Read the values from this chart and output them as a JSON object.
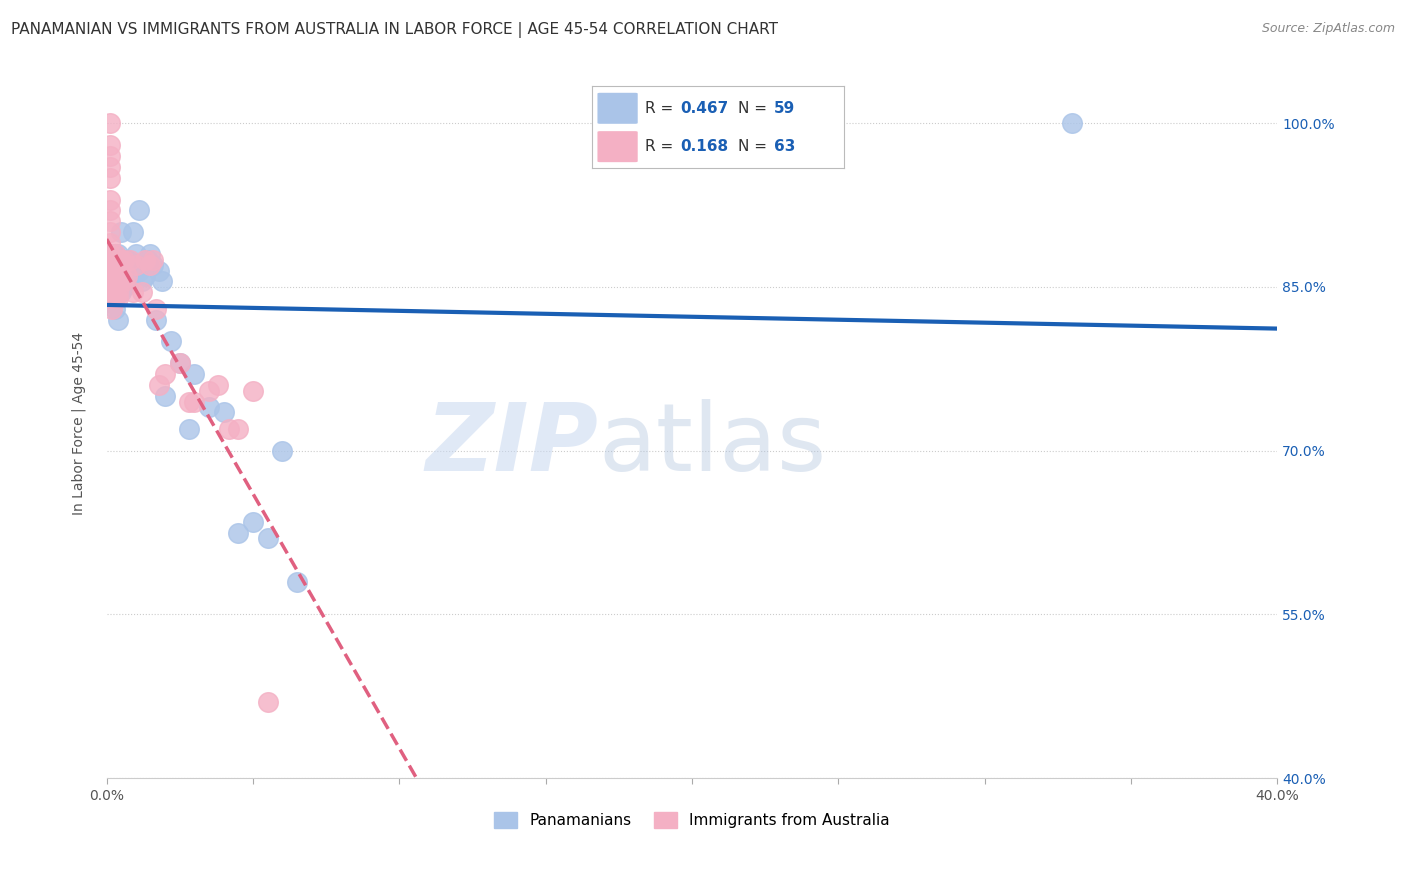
{
  "title": "PANAMANIAN VS IMMIGRANTS FROM AUSTRALIA IN LABOR FORCE | AGE 45-54 CORRELATION CHART",
  "source": "Source: ZipAtlas.com",
  "ylabel": "In Labor Force | Age 45-54",
  "xlim": [
    0.0,
    0.4
  ],
  "ylim": [
    0.4,
    1.05
  ],
  "ytick_positions": [
    0.4,
    0.55,
    0.7,
    0.85,
    1.0
  ],
  "yticklabels": [
    "40.0%",
    "55.0%",
    "70.0%",
    "85.0%",
    "100.0%"
  ],
  "xtick_positions": [
    0.0,
    0.05,
    0.1,
    0.15,
    0.2,
    0.25,
    0.3,
    0.35,
    0.4
  ],
  "xticklabels": [
    "0.0%",
    "",
    "",
    "",
    "",
    "",
    "",
    "",
    "40.0%"
  ],
  "blue_R": 0.467,
  "blue_N": 59,
  "pink_R": 0.168,
  "pink_N": 63,
  "blue_color": "#aac4e8",
  "pink_color": "#f4b0c4",
  "blue_line_color": "#1a5fb4",
  "pink_line_color": "#e06080",
  "blue_scatter": [
    [
      0.001,
      0.845
    ],
    [
      0.001,
      0.86
    ],
    [
      0.001,
      0.88
    ],
    [
      0.002,
      0.84
    ],
    [
      0.002,
      0.875
    ],
    [
      0.002,
      0.855
    ],
    [
      0.002,
      0.87
    ],
    [
      0.002,
      0.84
    ],
    [
      0.002,
      0.835
    ],
    [
      0.003,
      0.86
    ],
    [
      0.003,
      0.845
    ],
    [
      0.003,
      0.83
    ],
    [
      0.003,
      0.85
    ],
    [
      0.003,
      0.88
    ],
    [
      0.003,
      0.855
    ],
    [
      0.003,
      0.875
    ],
    [
      0.003,
      0.84
    ],
    [
      0.004,
      0.86
    ],
    [
      0.004,
      0.82
    ],
    [
      0.004,
      0.875
    ],
    [
      0.004,
      0.855
    ],
    [
      0.004,
      0.88
    ],
    [
      0.005,
      0.86
    ],
    [
      0.005,
      0.845
    ],
    [
      0.005,
      0.87
    ],
    [
      0.005,
      0.9
    ],
    [
      0.005,
      0.855
    ],
    [
      0.006,
      0.875
    ],
    [
      0.006,
      0.85
    ],
    [
      0.007,
      0.865
    ],
    [
      0.007,
      0.875
    ],
    [
      0.008,
      0.87
    ],
    [
      0.008,
      0.855
    ],
    [
      0.009,
      0.9
    ],
    [
      0.01,
      0.87
    ],
    [
      0.01,
      0.88
    ],
    [
      0.011,
      0.92
    ],
    [
      0.011,
      0.865
    ],
    [
      0.012,
      0.855
    ],
    [
      0.013,
      0.86
    ],
    [
      0.014,
      0.875
    ],
    [
      0.015,
      0.88
    ],
    [
      0.016,
      0.87
    ],
    [
      0.017,
      0.82
    ],
    [
      0.018,
      0.865
    ],
    [
      0.019,
      0.855
    ],
    [
      0.02,
      0.75
    ],
    [
      0.022,
      0.8
    ],
    [
      0.025,
      0.78
    ],
    [
      0.028,
      0.72
    ],
    [
      0.03,
      0.77
    ],
    [
      0.035,
      0.74
    ],
    [
      0.04,
      0.735
    ],
    [
      0.045,
      0.625
    ],
    [
      0.05,
      0.635
    ],
    [
      0.055,
      0.62
    ],
    [
      0.06,
      0.7
    ],
    [
      0.065,
      0.58
    ],
    [
      0.33,
      1.0
    ]
  ],
  "pink_scatter": [
    [
      0.001,
      1.0
    ],
    [
      0.001,
      0.98
    ],
    [
      0.001,
      0.97
    ],
    [
      0.001,
      0.96
    ],
    [
      0.001,
      0.95
    ],
    [
      0.001,
      0.93
    ],
    [
      0.001,
      0.92
    ],
    [
      0.001,
      0.91
    ],
    [
      0.001,
      0.9
    ],
    [
      0.001,
      0.89
    ],
    [
      0.001,
      0.88
    ],
    [
      0.001,
      0.87
    ],
    [
      0.001,
      0.86
    ],
    [
      0.001,
      0.855
    ],
    [
      0.002,
      0.875
    ],
    [
      0.002,
      0.86
    ],
    [
      0.002,
      0.855
    ],
    [
      0.002,
      0.845
    ],
    [
      0.002,
      0.84
    ],
    [
      0.002,
      0.83
    ],
    [
      0.002,
      0.875
    ],
    [
      0.002,
      0.86
    ],
    [
      0.002,
      0.855
    ],
    [
      0.002,
      0.845
    ],
    [
      0.003,
      0.88
    ],
    [
      0.003,
      0.875
    ],
    [
      0.003,
      0.86
    ],
    [
      0.003,
      0.845
    ],
    [
      0.003,
      0.875
    ],
    [
      0.003,
      0.85
    ],
    [
      0.003,
      0.84
    ],
    [
      0.003,
      0.875
    ],
    [
      0.003,
      0.86
    ],
    [
      0.004,
      0.845
    ],
    [
      0.004,
      0.84
    ],
    [
      0.004,
      0.87
    ],
    [
      0.004,
      0.855
    ],
    [
      0.004,
      0.875
    ],
    [
      0.005,
      0.86
    ],
    [
      0.005,
      0.855
    ],
    [
      0.005,
      0.875
    ],
    [
      0.006,
      0.855
    ],
    [
      0.006,
      0.875
    ],
    [
      0.007,
      0.86
    ],
    [
      0.008,
      0.875
    ],
    [
      0.009,
      0.845
    ],
    [
      0.01,
      0.87
    ],
    [
      0.012,
      0.845
    ],
    [
      0.013,
      0.875
    ],
    [
      0.015,
      0.87
    ],
    [
      0.016,
      0.875
    ],
    [
      0.017,
      0.83
    ],
    [
      0.018,
      0.76
    ],
    [
      0.02,
      0.77
    ],
    [
      0.025,
      0.78
    ],
    [
      0.028,
      0.745
    ],
    [
      0.03,
      0.745
    ],
    [
      0.035,
      0.755
    ],
    [
      0.038,
      0.76
    ],
    [
      0.042,
      0.72
    ],
    [
      0.045,
      0.72
    ],
    [
      0.05,
      0.755
    ],
    [
      0.055,
      0.47
    ]
  ],
  "watermark_zip": "ZIP",
  "watermark_atlas": "atlas",
  "legend_blue_label": "Panamanians",
  "legend_pink_label": "Immigrants from Australia",
  "grid_color": "#cccccc",
  "background_color": "#ffffff",
  "title_fontsize": 11,
  "axis_label_fontsize": 10
}
